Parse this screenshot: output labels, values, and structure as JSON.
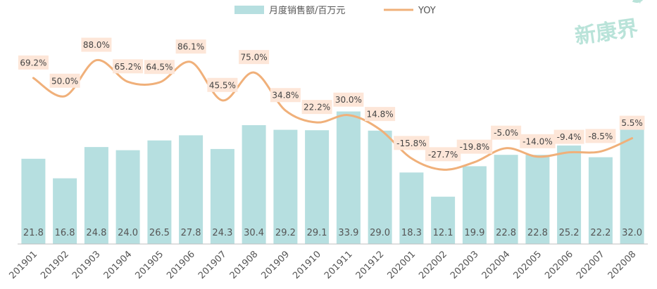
{
  "chart_data": {
    "type": "bar",
    "categories": [
      "201901",
      "201902",
      "201903",
      "201904",
      "201905",
      "201906",
      "201907",
      "201908",
      "201909",
      "201910",
      "201911",
      "201912",
      "202001",
      "202002",
      "202003",
      "202004",
      "202005",
      "202006",
      "202007",
      "202008"
    ],
    "series": [
      {
        "name": "月度销售额/百万元",
        "type": "bar",
        "color": "#b6dfe0",
        "values": [
          21.8,
          16.8,
          24.8,
          24.0,
          26.5,
          27.8,
          24.3,
          30.4,
          29.2,
          29.1,
          33.9,
          29.0,
          18.3,
          12.1,
          19.9,
          22.8,
          22.8,
          25.2,
          22.2,
          32.0
        ]
      },
      {
        "name": "YOY",
        "type": "line",
        "color": "#f0b07a",
        "values": [
          69.2,
          50.0,
          88.0,
          65.2,
          64.5,
          86.1,
          45.5,
          75.0,
          34.8,
          22.2,
          30.0,
          14.8,
          -15.8,
          -27.7,
          -19.8,
          -5.0,
          -14.0,
          -9.4,
          -8.5,
          5.5
        ],
        "value_labels": [
          "69.2%",
          "50.0%",
          "88.0%",
          "65.2%",
          "64.5%",
          "86.1%",
          "45.5%",
          "75.0%",
          "34.8%",
          "22.2%",
          "30.0%",
          "14.8%",
          "-15.8%",
          "-27.7%",
          "-19.8%",
          "-5.0%",
          "-14.0%",
          "-9.4%",
          "-8.5%",
          "5.5%"
        ]
      }
    ],
    "bar_value_labels": [
      "21.8",
      "16.8",
      "24.8",
      "24.0",
      "26.5",
      "27.8",
      "24.3",
      "30.4",
      "29.2",
      "29.1",
      "33.9",
      "29.0",
      "18.3",
      "12.1",
      "19.9",
      "22.8",
      "22.8",
      "25.2",
      "22.2",
      "32.0"
    ],
    "title": "",
    "xlabel": "",
    "ylabel": "",
    "ylim": [
      0,
      44
    ],
    "y2lim": [
      -40,
      110
    ],
    "grid": false,
    "legend_position": "top-center",
    "label_box_color": "#fde6d8"
  },
  "watermark": "新康界"
}
